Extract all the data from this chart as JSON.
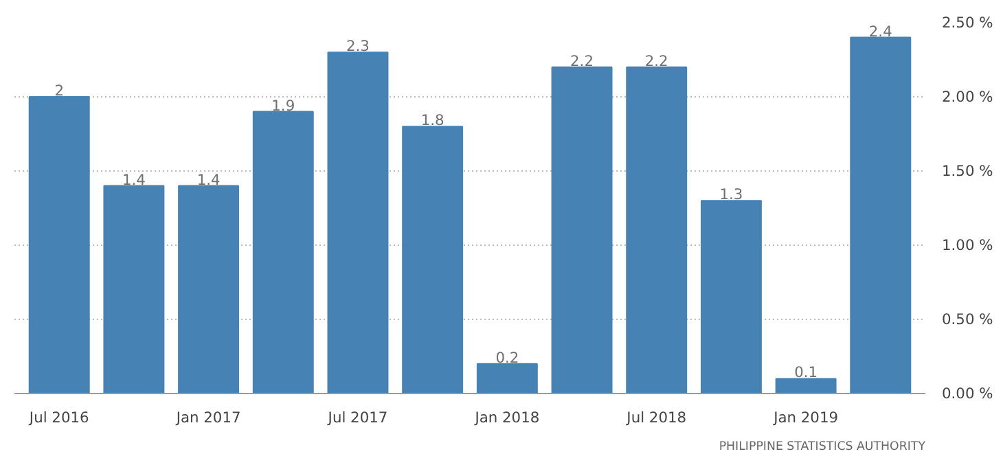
{
  "chart_data": {
    "type": "bar",
    "categories": [
      "Jul 2016",
      null,
      "Jan 2017",
      null,
      "Jul 2017",
      null,
      "Jan 2018",
      null,
      "Jul 2018",
      null,
      "Jan 2019",
      null
    ],
    "values": [
      2,
      1.4,
      1.4,
      1.9,
      2.3,
      1.8,
      0.2,
      2.2,
      2.2,
      1.3,
      0.1,
      2.4
    ],
    "color": "#4682b4",
    "data_labels": true,
    "grid": "y",
    "ylim": [
      0,
      2.5
    ],
    "yticks": [
      {
        "value": 0,
        "label": "0.00 %"
      },
      {
        "value": 0.5,
        "label": "0.50 %"
      },
      {
        "value": 1,
        "label": "1.00 %"
      },
      {
        "value": 1.5,
        "label": "1.50 %"
      },
      {
        "value": 2,
        "label": "2.00 %"
      },
      {
        "value": 2.5,
        "label": "2.50 %"
      }
    ],
    "annotations": [
      "PHILIPPINE STATISTICS AUTHORITY"
    ]
  }
}
